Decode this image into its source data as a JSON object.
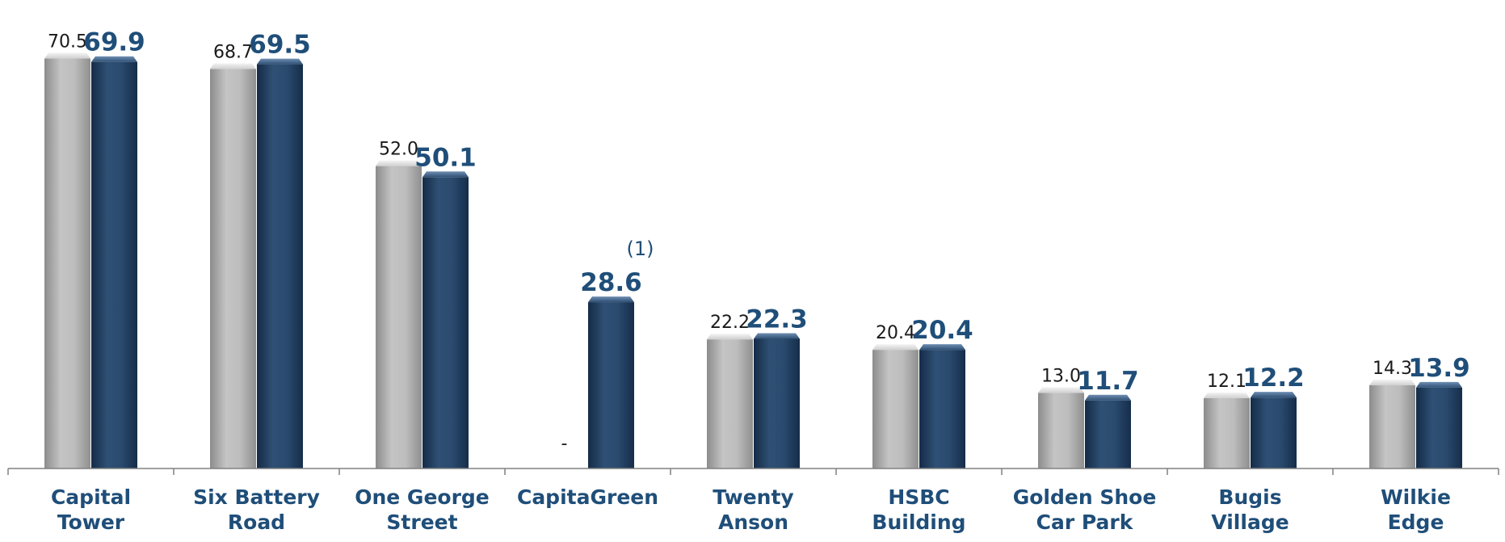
{
  "chart_data": {
    "type": "bar",
    "categories": [
      [
        "Capital",
        "Tower"
      ],
      [
        "Six Battery",
        "Road"
      ],
      [
        "One George",
        "Street"
      ],
      [
        "CapitaGreen"
      ],
      [
        "Twenty",
        "Anson"
      ],
      [
        "HSBC",
        "Building"
      ],
      [
        "Golden Shoe",
        "Car Park"
      ],
      [
        "Bugis",
        "Village"
      ],
      [
        "Wilkie",
        "Edge"
      ]
    ],
    "series": [
      {
        "values": [
          70.5,
          68.7,
          52.0,
          null,
          22.2,
          20.4,
          13.0,
          12.1,
          14.3
        ],
        "labels": [
          "70.5",
          "68.7",
          "52.0",
          "-",
          "22.2",
          "20.4",
          "13.0",
          "12.1",
          "14.3"
        ],
        "color": "#bfbfbf"
      },
      {
        "values": [
          69.9,
          69.5,
          50.1,
          28.6,
          22.3,
          20.4,
          11.7,
          12.2,
          13.9
        ],
        "labels": [
          "69.9",
          "69.5",
          "50.1",
          "28.6",
          "22.3",
          "20.4",
          "11.7",
          "12.2",
          "13.9"
        ],
        "color": "#2b4a6f"
      }
    ],
    "annotations": [
      {
        "category_index": 3,
        "series_index": 1,
        "text": "(1)"
      }
    ],
    "ylim": [
      0,
      75
    ],
    "grid": false,
    "legend": "none"
  }
}
